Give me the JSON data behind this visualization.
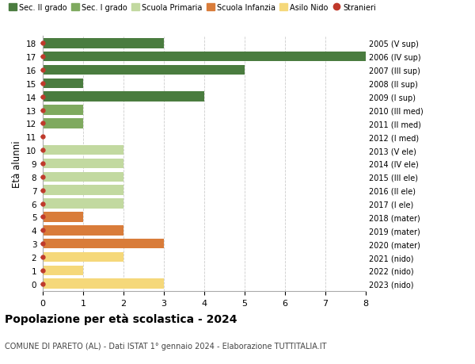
{
  "ages": [
    18,
    17,
    16,
    15,
    14,
    13,
    12,
    11,
    10,
    9,
    8,
    7,
    6,
    5,
    4,
    3,
    2,
    1,
    0
  ],
  "right_labels": [
    "2005 (V sup)",
    "2006 (IV sup)",
    "2007 (III sup)",
    "2008 (II sup)",
    "2009 (I sup)",
    "2010 (III med)",
    "2011 (II med)",
    "2012 (I med)",
    "2013 (V ele)",
    "2014 (IV ele)",
    "2015 (III ele)",
    "2016 (II ele)",
    "2017 (I ele)",
    "2018 (mater)",
    "2019 (mater)",
    "2020 (mater)",
    "2021 (nido)",
    "2022 (nido)",
    "2023 (nido)"
  ],
  "values": [
    3,
    8,
    5,
    1,
    4,
    1,
    1,
    0,
    2,
    2,
    2,
    2,
    2,
    1,
    2,
    3,
    2,
    1,
    3
  ],
  "colors": [
    "#4a7c3f",
    "#4a7c3f",
    "#4a7c3f",
    "#4a7c3f",
    "#4a7c3f",
    "#7faa5f",
    "#7faa5f",
    "#7faa5f",
    "#c2d9a0",
    "#c2d9a0",
    "#c2d9a0",
    "#c2d9a0",
    "#c2d9a0",
    "#d97c3a",
    "#d97c3a",
    "#d97c3a",
    "#f5d87a",
    "#f5d87a",
    "#f5d87a"
  ],
  "stranieri_color": "#c0392b",
  "legend_labels": [
    "Sec. II grado",
    "Sec. I grado",
    "Scuola Primaria",
    "Scuola Infanzia",
    "Asilo Nido",
    "Stranieri"
  ],
  "legend_colors": [
    "#4a7c3f",
    "#7faa5f",
    "#c2d9a0",
    "#d97c3a",
    "#f5d87a",
    "#c0392b"
  ],
  "ylabel": "Età alunni",
  "title": "Popolazione per età scolastica - 2024",
  "subtitle": "COMUNE DI PARETO (AL) - Dati ISTAT 1° gennaio 2024 - Elaborazione TUTTITALIA.IT",
  "xlim": [
    0,
    8
  ],
  "grid_color": "#cccccc",
  "bg_color": "#ffffff",
  "bar_height": 0.75
}
